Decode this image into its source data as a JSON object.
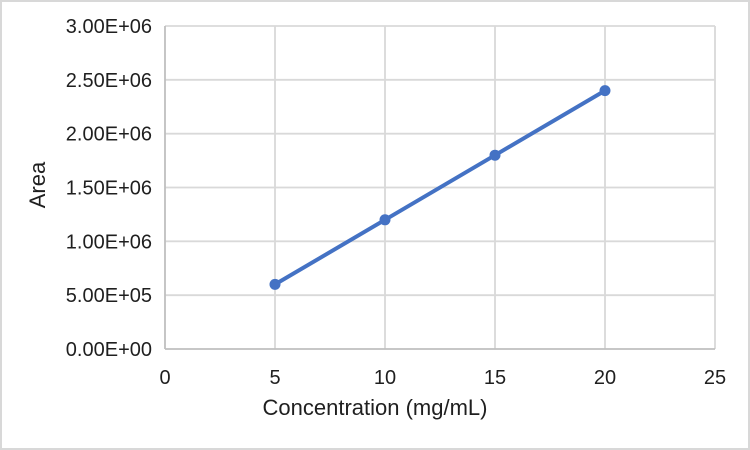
{
  "chart_data": {
    "type": "line",
    "title": "",
    "xlabel": "Concentration (mg/mL)",
    "ylabel": "Area",
    "x": [
      5,
      10,
      15,
      20
    ],
    "y": [
      600000,
      1200000,
      1800000,
      2400000
    ],
    "xlim": [
      0,
      25
    ],
    "ylim": [
      0,
      3000000
    ],
    "x_ticks": [
      0,
      5,
      10,
      15,
      20,
      25
    ],
    "x_tick_labels": [
      "0",
      "5",
      "10",
      "15",
      "20",
      "25"
    ],
    "y_ticks": [
      0,
      500000,
      1000000,
      1500000,
      2000000,
      2500000,
      3000000
    ],
    "y_tick_labels": [
      "0.00E+00",
      "5.00E+05",
      "1.00E+06",
      "1.50E+06",
      "2.00E+06",
      "2.50E+06",
      "3.00E+06"
    ],
    "grid": true,
    "legend_position": "none",
    "marker": "circle",
    "colors": {
      "series": "#4472C4",
      "gridline": "#d9d9d9",
      "axis_line": "#bfbfbf",
      "text": "#1f1f1f",
      "background": "#ffffff",
      "frame_border": "#d8d8d8"
    }
  }
}
